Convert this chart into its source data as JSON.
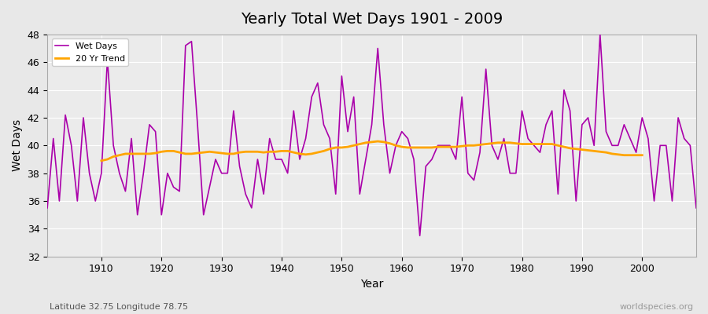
{
  "title": "Yearly Total Wet Days 1901 - 2009",
  "xlabel": "Year",
  "ylabel": "Wet Days",
  "subtitle": "Latitude 32.75 Longitude 78.75",
  "watermark": "worldspecies.org",
  "bg_color": "#e8e8e8",
  "plot_bg_color": "#ebebeb",
  "wet_days_color": "#aa00aa",
  "trend_color": "#ffa500",
  "ylim": [
    32,
    48
  ],
  "yticks": [
    32,
    34,
    36,
    38,
    40,
    42,
    44,
    46,
    48
  ],
  "years": [
    1901,
    1902,
    1903,
    1904,
    1905,
    1906,
    1907,
    1908,
    1909,
    1910,
    1911,
    1912,
    1913,
    1914,
    1915,
    1916,
    1917,
    1918,
    1919,
    1920,
    1921,
    1922,
    1923,
    1924,
    1925,
    1926,
    1927,
    1928,
    1929,
    1930,
    1931,
    1932,
    1933,
    1934,
    1935,
    1936,
    1937,
    1938,
    1939,
    1940,
    1941,
    1942,
    1943,
    1944,
    1945,
    1946,
    1947,
    1948,
    1949,
    1950,
    1951,
    1952,
    1953,
    1954,
    1955,
    1956,
    1957,
    1958,
    1959,
    1960,
    1961,
    1962,
    1963,
    1964,
    1965,
    1966,
    1967,
    1968,
    1969,
    1970,
    1971,
    1972,
    1973,
    1974,
    1975,
    1976,
    1977,
    1978,
    1979,
    1980,
    1981,
    1982,
    1983,
    1984,
    1985,
    1986,
    1987,
    1988,
    1989,
    1990,
    1991,
    1992,
    1993,
    1994,
    1995,
    1996,
    1997,
    1998,
    1999,
    2000,
    2001,
    2002,
    2003,
    2004,
    2005,
    2006,
    2007,
    2008,
    2009
  ],
  "wet_days": [
    35.5,
    40.5,
    36.0,
    42.2,
    40.0,
    36.0,
    42.0,
    38.0,
    36.0,
    38.0,
    46.2,
    40.0,
    38.0,
    36.7,
    40.5,
    35.0,
    38.0,
    41.5,
    41.0,
    35.0,
    38.0,
    37.0,
    36.7,
    47.2,
    47.5,
    41.5,
    35.0,
    37.0,
    39.0,
    38.0,
    38.0,
    42.5,
    38.5,
    36.5,
    35.5,
    39.0,
    36.5,
    40.5,
    39.0,
    39.0,
    38.0,
    42.5,
    39.0,
    40.5,
    43.5,
    44.5,
    41.5,
    40.5,
    36.5,
    45.0,
    41.0,
    43.5,
    36.5,
    39.0,
    41.5,
    47.0,
    41.5,
    38.0,
    40.0,
    41.0,
    40.5,
    39.0,
    33.5,
    38.5,
    39.0,
    40.0,
    40.0,
    40.0,
    39.0,
    43.5,
    38.0,
    37.5,
    39.5,
    45.5,
    40.0,
    39.0,
    40.5,
    38.0,
    38.0,
    42.5,
    40.5,
    40.0,
    39.5,
    41.5,
    42.5,
    36.5,
    44.0,
    42.5,
    36.0,
    41.5,
    42.0,
    40.0,
    48.0,
    41.0,
    40.0,
    40.0,
    41.5,
    40.5,
    39.5,
    42.0,
    40.5,
    36.0,
    40.0,
    40.0,
    36.0,
    42.0,
    40.5,
    40.0,
    35.5
  ],
  "trend_years": [
    1910,
    1911,
    1912,
    1913,
    1914,
    1915,
    1916,
    1917,
    1918,
    1919,
    1920,
    1921,
    1922,
    1923,
    1924,
    1925,
    1926,
    1927,
    1928,
    1929,
    1930,
    1931,
    1932,
    1933,
    1934,
    1935,
    1936,
    1937,
    1938,
    1939,
    1940,
    1941,
    1942,
    1943,
    1944,
    1945,
    1946,
    1947,
    1948,
    1949,
    1950,
    1951,
    1952,
    1953,
    1954,
    1955,
    1956,
    1957,
    1958,
    1959,
    1960,
    1961,
    1962,
    1963,
    1964,
    1965,
    1966,
    1967,
    1968,
    1969,
    1970,
    1971,
    1972,
    1973,
    1974,
    1975,
    1976,
    1977,
    1978,
    1979,
    1980,
    1981,
    1982,
    1983,
    1984,
    1985,
    1986,
    1987,
    1988,
    1989,
    1990,
    1991,
    1992,
    1993,
    1994,
    1995,
    1996,
    1997,
    1998,
    1999,
    2000
  ],
  "trend_vals": [
    38.9,
    39.0,
    39.2,
    39.3,
    39.4,
    39.4,
    39.4,
    39.4,
    39.4,
    39.45,
    39.55,
    39.6,
    39.6,
    39.5,
    39.4,
    39.4,
    39.45,
    39.5,
    39.55,
    39.5,
    39.45,
    39.4,
    39.4,
    39.5,
    39.55,
    39.55,
    39.55,
    39.5,
    39.55,
    39.55,
    39.6,
    39.6,
    39.5,
    39.4,
    39.35,
    39.4,
    39.5,
    39.6,
    39.75,
    39.85,
    39.85,
    39.9,
    40.0,
    40.1,
    40.2,
    40.25,
    40.3,
    40.25,
    40.15,
    40.0,
    39.9,
    39.85,
    39.85,
    39.85,
    39.85,
    39.85,
    39.9,
    39.9,
    39.9,
    39.9,
    39.95,
    40.0,
    40.0,
    40.05,
    40.1,
    40.15,
    40.2,
    40.2,
    40.2,
    40.15,
    40.1,
    40.1,
    40.1,
    40.1,
    40.1,
    40.1,
    40.0,
    39.9,
    39.8,
    39.75,
    39.7,
    39.65,
    39.6,
    39.55,
    39.5,
    39.4,
    39.35,
    39.3,
    39.3,
    39.3,
    39.3
  ]
}
